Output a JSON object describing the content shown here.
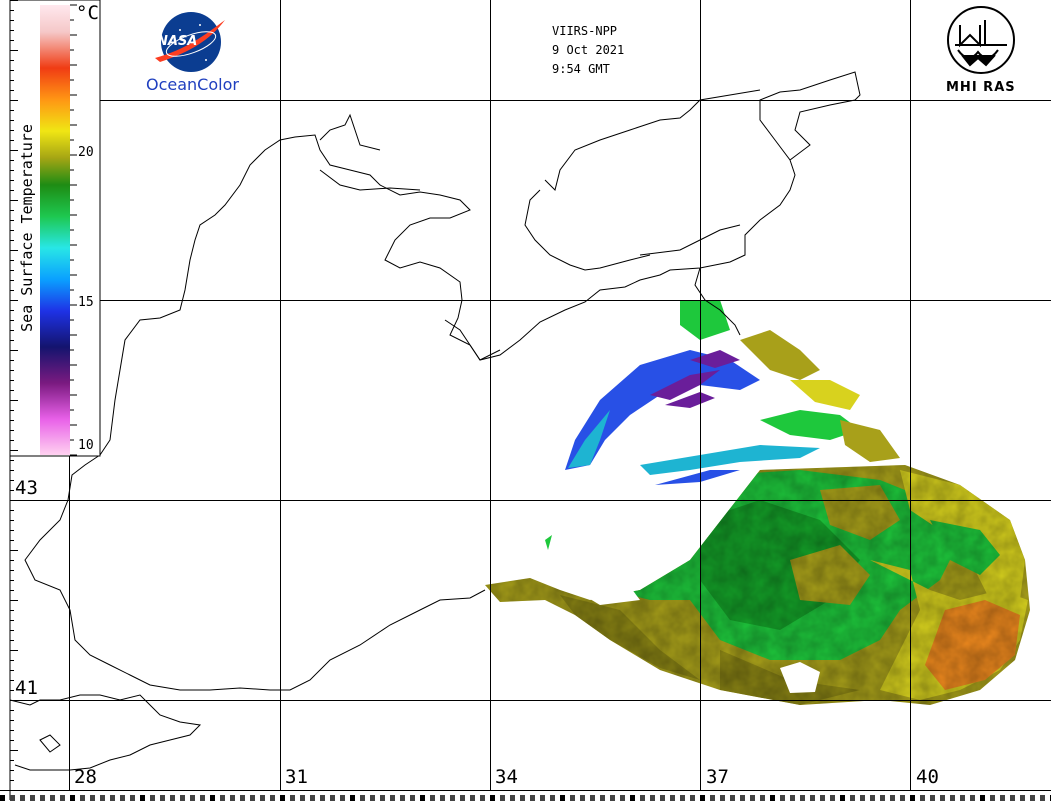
{
  "header": {
    "satellite": "VIIRS-NPP",
    "date": "9 Oct 2021",
    "time": "9:54 GMT"
  },
  "logos": {
    "nasa_wordmark": "NASA",
    "oceancolor": "OceanColor",
    "mhi_ras": "MHI RAS"
  },
  "colorbar": {
    "title": "Sea Surface Temperature",
    "unit": "°C",
    "ticks": [
      "20",
      "15",
      "10"
    ],
    "range": [
      10,
      25
    ],
    "colors": [
      "#ffd2f0",
      "#e860e8",
      "#7a1a80",
      "#14146e",
      "#1e32e6",
      "#0aa0ff",
      "#28e6e6",
      "#1ec850",
      "#1e8c14",
      "#a5a514",
      "#f0e614",
      "#ff9614",
      "#f03c14",
      "#f5c8c8",
      "#ffe8ee"
    ]
  },
  "axes": {
    "longitude_labels": [
      "28",
      "31",
      "34",
      "37",
      "40"
    ],
    "latitude_labels": [
      "43",
      "41"
    ]
  },
  "sst_palette": {
    "warm_orange": "#f08a1e",
    "yellow": "#d8d21e",
    "olive": "#a8a01a",
    "green": "#1ec83c",
    "dark_green": "#14a028",
    "cyan": "#1eb4d2",
    "blue": "#2850e6",
    "purple": "#6a1e9a"
  }
}
